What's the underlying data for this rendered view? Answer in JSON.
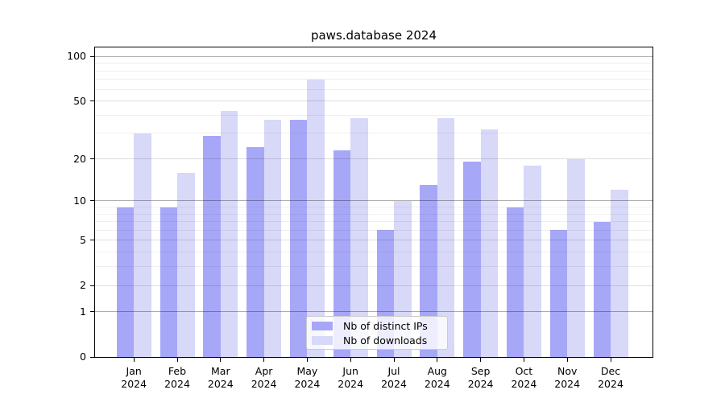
{
  "chart_data": {
    "type": "bar",
    "title": "paws.database 2024",
    "categories": [
      "Jan 2024",
      "Feb 2024",
      "Mar 2024",
      "Apr 2024",
      "May 2024",
      "Jun 2024",
      "Jul 2024",
      "Aug 2024",
      "Sep 2024",
      "Oct 2024",
      "Nov 2024",
      "Dec 2024"
    ],
    "x_tick_line1": [
      "Jan",
      "Feb",
      "Mar",
      "Apr",
      "May",
      "Jun",
      "Jul",
      "Aug",
      "Sep",
      "Oct",
      "Nov",
      "Dec"
    ],
    "x_tick_line2": "2024",
    "series": [
      {
        "name": "Nb of distinct IPs",
        "color": "#a7a7f7",
        "values": [
          9,
          9,
          29,
          24,
          37,
          23,
          6,
          13,
          19,
          9,
          6,
          7
        ]
      },
      {
        "name": "Nb of downloads",
        "color": "#d8d8f8",
        "values": [
          30,
          16,
          43,
          37,
          70,
          38,
          10,
          38,
          32,
          18,
          20,
          12
        ]
      }
    ],
    "yscale": "log1p",
    "ylim": [
      0,
      118
    ],
    "y_ticks": [
      0,
      1,
      2,
      5,
      10,
      20,
      50,
      100
    ],
    "grid": {
      "on": true,
      "major_values": [
        1,
        10,
        100
      ],
      "medium_values": [
        2,
        5,
        20,
        50
      ],
      "minor_values": [
        3,
        4,
        6,
        7,
        8,
        9,
        30,
        40,
        60,
        70,
        80,
        90
      ]
    },
    "legend": {
      "position": "lower center",
      "entries": [
        "Nb of distinct IPs",
        "Nb of downloads"
      ]
    }
  }
}
